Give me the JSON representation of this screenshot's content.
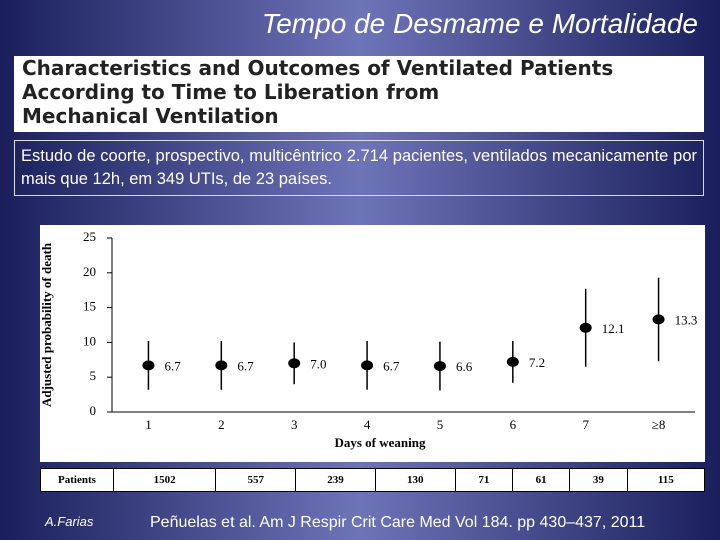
{
  "slide_title": "Tempo de Desmame e Mortalidade",
  "paper_title": [
    "Characteristics and Outcomes of Ventilated Patients",
    "According to Time to Liberation from",
    "Mechanical Ventilation"
  ],
  "summary": "Estudo de coorte, prospectivo, multicêntrico 2.714 pacientes, ventilados mecanicamente por mais que 12h, em 349 UTIs, de 23 países.",
  "chart_data": {
    "type": "errorbar",
    "x_label": "Days of weaning",
    "y_label": "Adjusted probability of death",
    "categories": [
      "1",
      "2",
      "3",
      "4",
      "5",
      "6",
      "7",
      "≥8"
    ],
    "values": [
      6.7,
      6.7,
      7.0,
      6.7,
      6.6,
      7.2,
      12.1,
      13.3
    ],
    "value_labels": [
      "6.7",
      "6.7",
      "7.0",
      "6.7",
      "6.6",
      "7.2",
      "12.1",
      "13.3"
    ],
    "errors": [
      3.5,
      3.5,
      3,
      3.5,
      3.5,
      3,
      5.6,
      6
    ],
    "color": "#000000",
    "ylim": [
      0,
      25
    ],
    "yticks": [
      0,
      5,
      10,
      15,
      20,
      25
    ]
  },
  "table": {
    "header": "Patients",
    "cells": [
      "1502",
      "557",
      "239",
      "130",
      "71",
      "61",
      "39",
      "115"
    ]
  },
  "author": "A.Farias",
  "citation": "Peñuelas et al. Am J Respir Crit Care Med Vol 184. pp 430–437, 2011"
}
